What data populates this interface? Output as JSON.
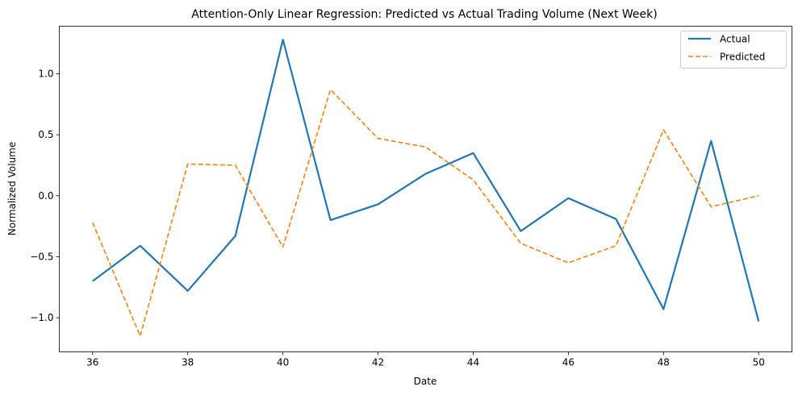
{
  "chart_data": {
    "type": "line",
    "title": "Attention-Only Linear Regression: Predicted vs Actual Trading Volume (Next Week)",
    "xlabel": "Date",
    "ylabel": "Normalized Volume",
    "x": [
      36,
      37,
      38,
      39,
      40,
      41,
      42,
      43,
      44,
      45,
      46,
      47,
      48,
      49,
      50
    ],
    "xlim": [
      35.3,
      50.7
    ],
    "ylim": [
      -1.28,
      1.39
    ],
    "xticks": [
      36,
      38,
      40,
      42,
      44,
      46,
      48,
      50
    ],
    "xtick_labels": [
      "36",
      "38",
      "40",
      "42",
      "44",
      "46",
      "48",
      "50"
    ],
    "yticks": [
      -1.0,
      -0.5,
      0.0,
      0.5,
      1.0
    ],
    "ytick_labels": [
      "−1.0",
      "−0.5",
      "0.0",
      "0.5",
      "1.0"
    ],
    "grid": false,
    "legend_position": "top-right",
    "series": [
      {
        "name": "Actual",
        "color": "#1f77b4",
        "style": "solid",
        "values": [
          -0.7,
          -0.41,
          -0.78,
          -0.33,
          1.28,
          -0.2,
          -0.07,
          0.18,
          0.35,
          -0.29,
          -0.02,
          -0.19,
          -0.93,
          0.45,
          -1.03
        ]
      },
      {
        "name": "Predicted",
        "color": "#ff7f0e",
        "style": "dashed",
        "values": [
          -0.22,
          -1.15,
          0.26,
          0.25,
          -0.42,
          0.87,
          0.47,
          0.4,
          0.13,
          -0.39,
          -0.55,
          -0.41,
          0.54,
          -0.09,
          0.0
        ]
      }
    ]
  }
}
